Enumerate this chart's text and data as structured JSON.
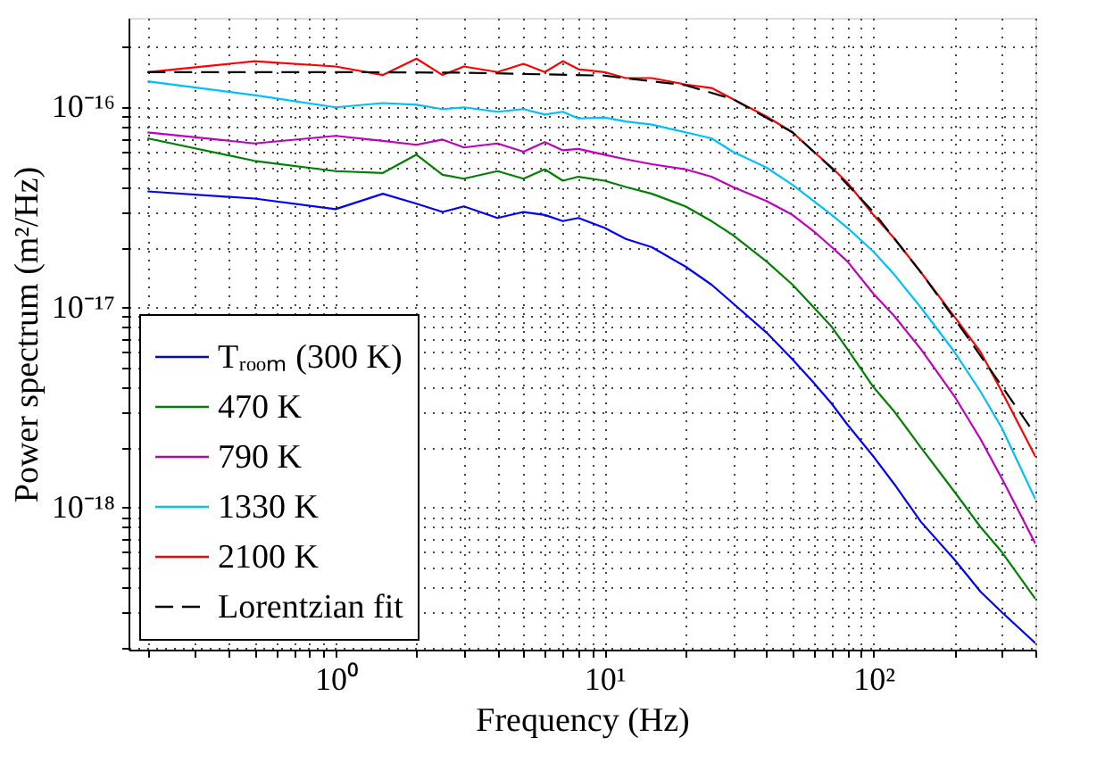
{
  "chart_data": {
    "type": "line",
    "xlabel": "Frequency (Hz)",
    "ylabel": "Power spectrum (m²/Hz)",
    "log": "xy",
    "grid": true,
    "legend": "bottom left",
    "xlim": [
      0.17,
      400
    ],
    "ylim": [
      1.95e-19,
      2.8e-16
    ],
    "xticks": [
      {
        "value": 0.2,
        "label": null
      },
      {
        "value": 0.3,
        "label": null
      },
      {
        "value": 0.4,
        "label": null
      },
      {
        "value": 0.5,
        "label": null
      },
      {
        "value": 0.6,
        "label": null
      },
      {
        "value": 0.7,
        "label": null
      },
      {
        "value": 0.8,
        "label": null
      },
      {
        "value": 0.9,
        "label": null
      },
      {
        "value": 1,
        "label": "10⁰"
      },
      {
        "value": 2,
        "label": null
      },
      {
        "value": 3,
        "label": null
      },
      {
        "value": 4,
        "label": null
      },
      {
        "value": 5,
        "label": null
      },
      {
        "value": 6,
        "label": null
      },
      {
        "value": 7,
        "label": null
      },
      {
        "value": 8,
        "label": null
      },
      {
        "value": 9,
        "label": null
      },
      {
        "value": 10,
        "label": "10¹"
      },
      {
        "value": 20,
        "label": null
      },
      {
        "value": 30,
        "label": null
      },
      {
        "value": 40,
        "label": null
      },
      {
        "value": 50,
        "label": null
      },
      {
        "value": 60,
        "label": null
      },
      {
        "value": 70,
        "label": null
      },
      {
        "value": 80,
        "label": null
      },
      {
        "value": 90,
        "label": null
      },
      {
        "value": 100,
        "label": "10²"
      },
      {
        "value": 200,
        "label": null
      },
      {
        "value": 300,
        "label": null
      },
      {
        "value": 400,
        "label": null
      }
    ],
    "yticks": [
      {
        "value": 2e-19,
        "label": null
      },
      {
        "value": 3e-19,
        "label": null
      },
      {
        "value": 4e-19,
        "label": null
      },
      {
        "value": 5e-19,
        "label": null
      },
      {
        "value": 6e-19,
        "label": null
      },
      {
        "value": 7e-19,
        "label": null
      },
      {
        "value": 8e-19,
        "label": null
      },
      {
        "value": 9e-19,
        "label": null
      },
      {
        "value": 1e-18,
        "label": "10⁻¹⁸"
      },
      {
        "value": 2e-18,
        "label": null
      },
      {
        "value": 3e-18,
        "label": null
      },
      {
        "value": 4e-18,
        "label": null
      },
      {
        "value": 5e-18,
        "label": null
      },
      {
        "value": 6e-18,
        "label": null
      },
      {
        "value": 7e-18,
        "label": null
      },
      {
        "value": 8e-18,
        "label": null
      },
      {
        "value": 9e-18,
        "label": null
      },
      {
        "value": 1e-17,
        "label": "10⁻¹⁷"
      },
      {
        "value": 2e-17,
        "label": null
      },
      {
        "value": 3e-17,
        "label": null
      },
      {
        "value": 4e-17,
        "label": null
      },
      {
        "value": 5e-17,
        "label": null
      },
      {
        "value": 6e-17,
        "label": null
      },
      {
        "value": 7e-17,
        "label": null
      },
      {
        "value": 8e-17,
        "label": null
      },
      {
        "value": 9e-17,
        "label": null
      },
      {
        "value": 1e-16,
        "label": "10⁻¹⁶"
      },
      {
        "value": 2e-16,
        "label": null
      }
    ],
    "x": [
      0.2,
      0.5,
      1,
      1.5,
      2,
      2.5,
      3,
      4,
      5,
      6,
      7,
      8,
      10,
      12,
      15,
      20,
      25,
      30,
      40,
      50,
      60,
      70,
      80,
      100,
      120,
      150,
      200,
      250,
      300,
      400
    ],
    "series": [
      {
        "name": "Tᵣₒₒₘ (300 K)",
        "color": "#0000ff",
        "values": [
          3.8e-17,
          3.5e-17,
          3.1e-17,
          3.7e-17,
          3.3e-17,
          3e-17,
          3.2e-17,
          2.8e-17,
          3e-17,
          2.9e-17,
          2.7e-17,
          2.8e-17,
          2.5e-17,
          2.2e-17,
          2e-17,
          1.6e-17,
          1.3e-17,
          1.05e-17,
          7.5e-18,
          5.5e-18,
          4.2e-18,
          3.3e-18,
          2.6e-18,
          1.8e-18,
          1.3e-18,
          8.5e-19,
          5.5e-19,
          3.8e-19,
          3e-19,
          2.1e-19
        ]
      },
      {
        "name": "470 K",
        "color": "#008000",
        "values": [
          7e-17,
          5.4e-17,
          4.8e-17,
          4.7e-17,
          5.8e-17,
          4.6e-17,
          4.4e-17,
          4.8e-17,
          4.4e-17,
          4.9e-17,
          4.3e-17,
          4.5e-17,
          4.3e-17,
          4e-17,
          3.7e-17,
          3.2e-17,
          2.7e-17,
          2.3e-17,
          1.7e-17,
          1.3e-17,
          1e-17,
          8e-18,
          6.2e-18,
          4e-18,
          3e-18,
          2e-18,
          1.2e-18,
          8e-19,
          6e-19,
          3.5e-19
        ]
      },
      {
        "name": "790 K",
        "color": "#bf00bf",
        "values": [
          7.5e-17,
          6.6e-17,
          7.2e-17,
          6.8e-17,
          6.5e-17,
          6.9e-17,
          6.3e-17,
          6.6e-17,
          6e-17,
          6.7e-17,
          6.1e-17,
          6.2e-17,
          5.8e-17,
          5.5e-17,
          5.2e-17,
          4.9e-17,
          4.5e-17,
          4e-17,
          3.4e-17,
          2.9e-17,
          2.4e-17,
          2e-17,
          1.7e-17,
          1.17e-17,
          9e-18,
          6.2e-18,
          3.6e-18,
          2.2e-18,
          1.4e-18,
          6.6e-19
        ]
      },
      {
        "name": "1330 K",
        "color": "#00bfff",
        "values": [
          1.35e-16,
          1.15e-16,
          1e-16,
          1.05e-16,
          1.03e-16,
          9.8e-17,
          1e-16,
          9.5e-17,
          9.8e-17,
          9.2e-17,
          9.5e-17,
          8.8e-17,
          8.9e-17,
          8.5e-17,
          8.2e-17,
          7.5e-17,
          7e-17,
          6e-17,
          5e-17,
          4.1e-17,
          3.4e-17,
          2.9e-17,
          2.5e-17,
          1.9e-17,
          1.45e-17,
          1e-17,
          6e-18,
          3.8e-18,
          2.5e-18,
          1.1e-18
        ]
      },
      {
        "name": "2100 K",
        "color": "#ff0000",
        "values": [
          1.5e-16,
          1.7e-16,
          1.6e-16,
          1.45e-16,
          1.75e-16,
          1.45e-16,
          1.6e-16,
          1.5e-16,
          1.65e-16,
          1.5e-16,
          1.7e-16,
          1.55e-16,
          1.5e-16,
          1.4e-16,
          1.4e-16,
          1.3e-16,
          1.25e-16,
          1.1e-16,
          9e-17,
          7.5e-17,
          6e-17,
          5e-17,
          4.2e-17,
          2.9e-17,
          2.2e-17,
          1.5e-17,
          9e-18,
          6e-18,
          3.8e-18,
          1.8e-18
        ]
      },
      {
        "name": "Lorentzian fit",
        "color": "#000000",
        "line_style": "dashed",
        "x": [
          0.2,
          1,
          3,
          10,
          20,
          30,
          50,
          70,
          100,
          150,
          200,
          300,
          400
        ],
        "values": [
          1.5e-16,
          1.5e-16,
          1.49e-16,
          1.44e-16,
          1.29e-16,
          1.1e-16,
          7.5e-17,
          4.96e-17,
          3e-17,
          1.5e-17,
          8.8e-18,
          4.05e-18,
          2.31e-18
        ]
      }
    ]
  }
}
